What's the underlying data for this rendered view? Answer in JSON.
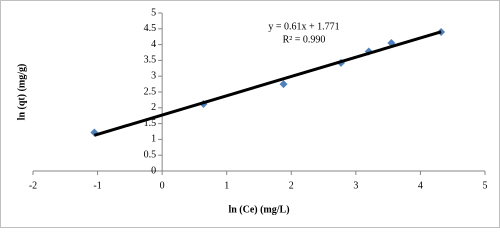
{
  "chart_data": {
    "type": "scatter",
    "x_label": "ln (Ce) (mg/L)",
    "y_label": "ln (qt) (mg/g)",
    "series": [
      {
        "color": "#4f81bd",
        "x": [
          -1.05,
          0.64,
          1.88,
          2.77,
          3.2,
          3.55,
          4.32
        ],
        "values": [
          1.22,
          2.12,
          2.75,
          3.42,
          3.78,
          4.05,
          4.4
        ]
      }
    ],
    "trendline": {
      "slope": 0.61,
      "intercept": 1.771,
      "color": "#000000",
      "equation": "y = 0.61x + 1.771",
      "r2": "R² = 0.990"
    },
    "xlim": [
      -2,
      5
    ],
    "xticks": [
      -2,
      -1,
      0,
      1,
      2,
      3,
      4,
      5
    ],
    "ylim": [
      0,
      5
    ],
    "yticks": [
      0,
      0.5,
      1,
      1.5,
      2,
      2.5,
      3,
      3.5,
      4,
      4.5,
      5
    ],
    "grid": false
  }
}
